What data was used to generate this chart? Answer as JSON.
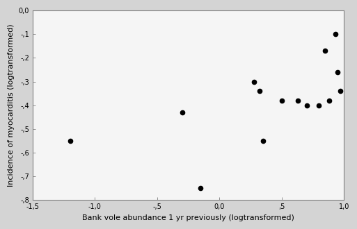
{
  "x": [
    -1.2,
    -0.3,
    -0.15,
    0.28,
    0.32,
    0.35,
    0.5,
    0.63,
    0.7,
    0.8,
    0.85,
    0.88,
    0.93,
    0.95,
    0.97
  ],
  "y": [
    -0.55,
    -0.43,
    -0.75,
    -0.3,
    -0.34,
    -0.55,
    -0.38,
    -0.38,
    -0.4,
    -0.4,
    -0.17,
    -0.38,
    -0.1,
    -0.26,
    -0.34
  ],
  "xlim": [
    -1.5,
    1.0
  ],
  "ylim": [
    -0.8,
    0.0
  ],
  "xticks": [
    -1.5,
    -1.0,
    -0.5,
    0.0,
    0.5,
    1.0
  ],
  "yticks": [
    0.0,
    -0.1,
    -0.2,
    -0.3,
    -0.4,
    -0.5,
    -0.6,
    -0.7,
    -0.8
  ],
  "x_labels": [
    "-1,5",
    "-1,0",
    "-,5",
    "0,0",
    ",5",
    "1,0"
  ],
  "y_labels": [
    "0,0",
    "-,1",
    "-,2",
    "-,3",
    "-,4",
    "-,5",
    "-,6",
    "-,7",
    "-,8"
  ],
  "xlabel": "Bank vole abundance 1 yr previously (logtransformed)",
  "ylabel": "Incidence of myocarditis (logtransformed)",
  "marker_color": "#000000",
  "marker_size": 4.5,
  "background_color": "#d4d4d4",
  "plot_bg_color": "#f5f5f5",
  "spine_color": "#808080",
  "tick_label_fontsize": 7,
  "axis_label_fontsize": 8
}
